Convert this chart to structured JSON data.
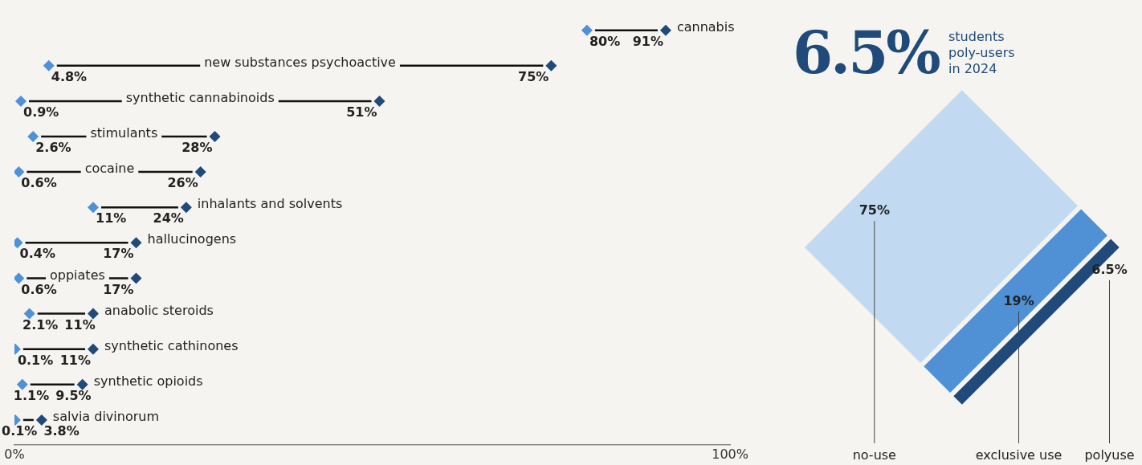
{
  "chart_data": [
    {
      "type": "scatter",
      "orientation": "horizontal",
      "categories": [
        "cannabis",
        "new substances psychoactive",
        "synthetic cannabinoids",
        "stimulants",
        "cocaine",
        "inhalants and solvents",
        "hallucinogens",
        "oppiates",
        "anabolic steroids",
        "synthetic cathinones",
        "synthetic opioids",
        "salvia divinorum"
      ],
      "series": [
        {
          "color": "#4f91d8",
          "values": [
            80,
            4.8,
            0.9,
            2.6,
            0.6,
            11,
            0.4,
            0.6,
            2.1,
            0.1,
            1.1,
            0.1
          ],
          "value_labels": [
            "80%",
            "4.8%",
            "0.9%",
            "2.6%",
            "0.6%",
            "11%",
            "0.4%",
            "0.6%",
            "2.1%",
            "0.1%",
            "1.1%",
            "0.1%"
          ]
        },
        {
          "color": "#1f4a7a",
          "values": [
            91,
            75,
            51,
            28,
            26,
            24,
            17,
            17,
            11,
            11,
            9.5,
            3.8
          ],
          "value_labels": [
            "91%",
            "75%",
            "51%",
            "28%",
            "26%",
            "24%",
            "17%",
            "17%",
            "11%",
            "11%",
            "9.5%",
            "3.8%"
          ]
        }
      ],
      "xlim": [
        0,
        100
      ],
      "xticks": [
        {
          "value": 0,
          "label": "0%"
        },
        {
          "value": 100,
          "label": "100%"
        }
      ],
      "tick_labels": "x",
      "marker": "diamond",
      "legend": false,
      "grid": false
    },
    {
      "type": "other",
      "title": "6.5%",
      "subtitle": "students poly-users in 2024",
      "categories": [
        "no-use",
        "exclusive use",
        "polyuse"
      ],
      "values": [
        75,
        19,
        6.5
      ],
      "value_labels": [
        "75%",
        "19%",
        "6.5%"
      ],
      "colors": [
        "#c1daf2",
        "#5090d5",
        "#1f4a7a"
      ]
    }
  ]
}
